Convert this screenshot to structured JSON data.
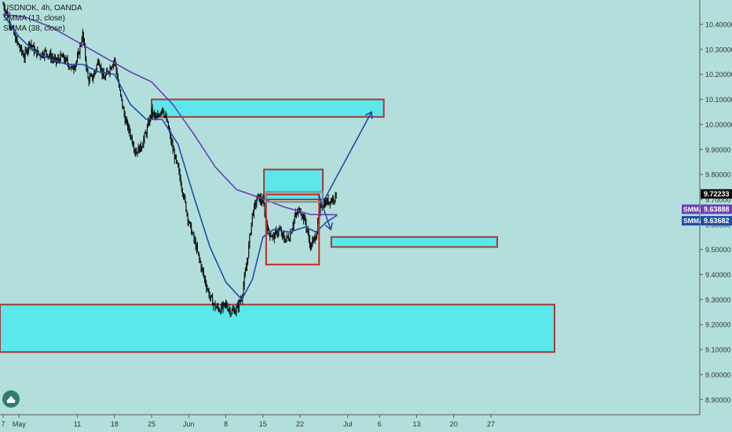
{
  "chart_data": {
    "type": "candlestick",
    "symbol_line": "USDNOK, 4h, OANDA",
    "indicators": [
      "SMMA (13, close)",
      "SMMA (38, close)"
    ],
    "colors": {
      "background": "#b2dfdb",
      "candle": "#0d0d0d",
      "smma13": "#1f4fa3",
      "smma38": "#6b3fb5",
      "zone_fill": "#5ce8ea",
      "zone_border": "#a33a3a",
      "arrow": "#1f3fa3",
      "last_price_badge": "#0d0d0d",
      "smma38_badge": "#6b3fb5",
      "smma13_badge": "#1f4fa3"
    },
    "y_axis": {
      "ticks": [
        "10.40000",
        "10.30000",
        "10.20000",
        "10.10000",
        "10.00000",
        "9.90000",
        "9.80000",
        "9.70000",
        "9.60000",
        "9.50000",
        "9.40000",
        "9.30000",
        "9.20000",
        "9.10000",
        "9.00000",
        "8.90000"
      ],
      "ylim": [
        8.85,
        10.49
      ]
    },
    "x_axis": {
      "ticks": [
        "7",
        "May",
        "11",
        "18",
        "25",
        "Jun",
        "8",
        "15",
        "22",
        "Jul",
        "6",
        "13",
        "20",
        "27"
      ],
      "tick_values": [
        27,
        30,
        41,
        48,
        55,
        62,
        69,
        76,
        83,
        92,
        98,
        105,
        112,
        119
      ]
    },
    "price_labels": [
      {
        "text": "9.72233",
        "value": 9.72233,
        "type": "last"
      },
      {
        "prefix": "SMMA",
        "text": "9.63888",
        "value": 9.63888,
        "type": "smma38"
      },
      {
        "prefix": "SMMA",
        "text": "9.63682",
        "value": 9.63682,
        "type": "smma13"
      }
    ],
    "price_path": [
      [
        27,
        10.48
      ],
      [
        28,
        10.43
      ],
      [
        29,
        10.36
      ],
      [
        30,
        10.31
      ],
      [
        31,
        10.27
      ],
      [
        32,
        10.33
      ],
      [
        33,
        10.29
      ],
      [
        34,
        10.28
      ],
      [
        35,
        10.29
      ],
      [
        36,
        10.27
      ],
      [
        37,
        10.25
      ],
      [
        38,
        10.27
      ],
      [
        39,
        10.25
      ],
      [
        40,
        10.22
      ],
      [
        41,
        10.26
      ],
      [
        42,
        10.36
      ],
      [
        43,
        10.18
      ],
      [
        44,
        10.19
      ],
      [
        45,
        10.26
      ],
      [
        46,
        10.18
      ],
      [
        47,
        10.22
      ],
      [
        48,
        10.26
      ],
      [
        49,
        10.13
      ],
      [
        50,
        10.02
      ],
      [
        51,
        9.96
      ],
      [
        52,
        9.89
      ],
      [
        53,
        9.91
      ],
      [
        54,
        9.97
      ],
      [
        55,
        10.05
      ],
      [
        56,
        10.02
      ],
      [
        57,
        10.07
      ],
      [
        58,
        10.0
      ],
      [
        59,
        9.9
      ],
      [
        60,
        9.82
      ],
      [
        61,
        9.72
      ],
      [
        62,
        9.61
      ],
      [
        63,
        9.54
      ],
      [
        64,
        9.46
      ],
      [
        65,
        9.38
      ],
      [
        66,
        9.31
      ],
      [
        67,
        9.27
      ],
      [
        68,
        9.26
      ],
      [
        69,
        9.28
      ],
      [
        70,
        9.25
      ],
      [
        71,
        9.26
      ],
      [
        72,
        9.31
      ],
      [
        73,
        9.45
      ],
      [
        74,
        9.64
      ],
      [
        75,
        9.71
      ],
      [
        76,
        9.69
      ],
      [
        77,
        9.57
      ],
      [
        78,
        9.55
      ],
      [
        79,
        9.58
      ],
      [
        80,
        9.54
      ],
      [
        81,
        9.55
      ],
      [
        82,
        9.63
      ],
      [
        83,
        9.66
      ],
      [
        84,
        9.61
      ],
      [
        85,
        9.51
      ],
      [
        86,
        9.56
      ],
      [
        87,
        9.68
      ],
      [
        88,
        9.69
      ],
      [
        89,
        9.7
      ],
      [
        90,
        9.72
      ]
    ],
    "smma13_path": [
      [
        27,
        10.44
      ],
      [
        30,
        10.35
      ],
      [
        33,
        10.29
      ],
      [
        36,
        10.26
      ],
      [
        39,
        10.24
      ],
      [
        42,
        10.24
      ],
      [
        45,
        10.21
      ],
      [
        48,
        10.2
      ],
      [
        51,
        10.08
      ],
      [
        54,
        10.02
      ],
      [
        57,
        10.02
      ],
      [
        60,
        9.92
      ],
      [
        63,
        9.71
      ],
      [
        66,
        9.51
      ],
      [
        69,
        9.37
      ],
      [
        72,
        9.3
      ],
      [
        74,
        9.38
      ],
      [
        76,
        9.55
      ],
      [
        78,
        9.58
      ],
      [
        81,
        9.57
      ],
      [
        84,
        9.59
      ],
      [
        86,
        9.57
      ],
      [
        88,
        9.61
      ],
      [
        90,
        9.637
      ]
    ],
    "smma38_path": [
      [
        27,
        10.44
      ],
      [
        31,
        10.43
      ],
      [
        36,
        10.39
      ],
      [
        41,
        10.33
      ],
      [
        46,
        10.27
      ],
      [
        51,
        10.21
      ],
      [
        55,
        10.17
      ],
      [
        59,
        10.08
      ],
      [
        63,
        9.96
      ],
      [
        67,
        9.83
      ],
      [
        71,
        9.74
      ],
      [
        75,
        9.71
      ],
      [
        80,
        9.67
      ],
      [
        85,
        9.64
      ],
      [
        90,
        9.639
      ]
    ],
    "zones": [
      {
        "x0": 55,
        "x1": 98.8,
        "y0": 10.1,
        "y1": 10.03
      },
      {
        "x0": 76.2,
        "x1": 87.3,
        "y0": 9.82,
        "y1": 9.7
      },
      {
        "x0": 88.9,
        "x1": 120.2,
        "y0": 9.55,
        "y1": 9.51
      },
      {
        "x0": 0,
        "x1": 131,
        "y0": 9.28,
        "y1": 9.09
      }
    ],
    "boxes": [
      {
        "x0": 76.6,
        "x1": 86.6,
        "y0": 9.72,
        "y1": 9.44
      },
      {
        "x0": 76.6,
        "x1": 87.3,
        "y0": 9.73,
        "y1": 9.69
      }
    ],
    "arrows": [
      {
        "points": [
          [
            86.5,
            9.72
          ],
          [
            88.8,
            9.58
          ]
        ]
      },
      {
        "points": [
          [
            87.6,
            9.7
          ],
          [
            96.5,
            10.05
          ]
        ]
      }
    ]
  }
}
